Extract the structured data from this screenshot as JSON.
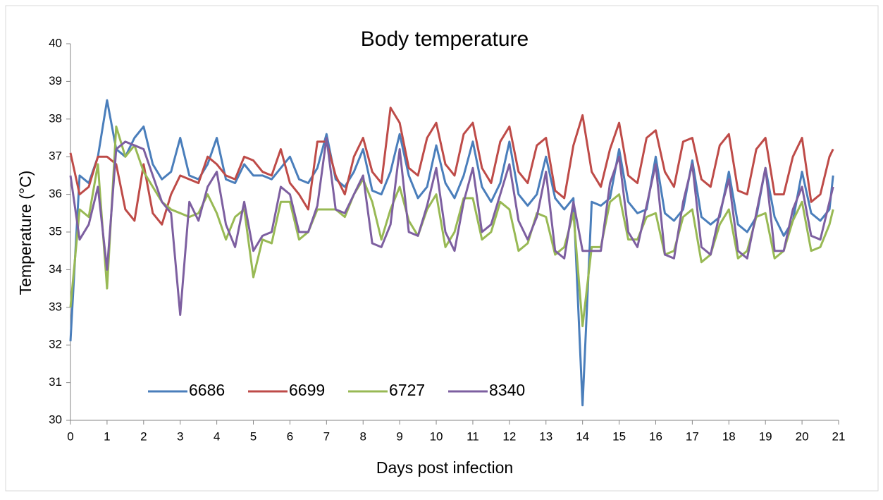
{
  "chart_data": {
    "type": "line",
    "title": "Body temperature",
    "x_label": "Days post infection",
    "y_label": "Temperature  (°C)",
    "x": [
      0,
      0.25,
      0.5,
      0.75,
      1,
      1.25,
      1.5,
      1.75,
      2,
      2.25,
      2.5,
      2.75,
      3,
      3.25,
      3.5,
      3.75,
      4,
      4.25,
      4.5,
      4.75,
      5,
      5.25,
      5.5,
      5.75,
      6,
      6.25,
      6.5,
      6.75,
      7,
      7.25,
      7.5,
      7.75,
      8,
      8.25,
      8.5,
      8.75,
      9,
      9.25,
      9.5,
      9.75,
      10,
      10.25,
      10.5,
      10.75,
      11,
      11.25,
      11.5,
      11.75,
      12,
      12.25,
      12.5,
      12.75,
      13,
      13.25,
      13.5,
      13.75,
      14,
      14.25,
      14.5,
      14.75,
      15,
      15.25,
      15.5,
      15.75,
      16,
      16.25,
      16.5,
      16.75,
      17,
      17.25,
      17.5,
      17.75,
      18,
      18.25,
      18.5,
      18.75,
      19,
      19.25,
      19.5,
      19.75,
      20,
      20.25,
      20.5,
      20.75,
      20.85
    ],
    "series": [
      {
        "name": "6686",
        "color": "#4a7ebb",
        "values": [
          32.1,
          36.5,
          36.3,
          37.0,
          38.5,
          37.2,
          37.0,
          37.5,
          37.8,
          36.8,
          36.4,
          36.6,
          37.5,
          36.5,
          36.4,
          36.8,
          37.5,
          36.4,
          36.3,
          36.8,
          36.5,
          36.5,
          36.4,
          36.7,
          37.0,
          36.4,
          36.3,
          36.7,
          37.6,
          36.4,
          36.2,
          36.6,
          37.2,
          36.1,
          36.0,
          36.6,
          37.6,
          36.5,
          35.9,
          36.2,
          37.3,
          36.3,
          35.9,
          36.5,
          37.4,
          36.2,
          35.8,
          36.3,
          37.4,
          36.0,
          35.7,
          36.0,
          37.0,
          35.9,
          35.6,
          35.9,
          30.4,
          35.8,
          35.7,
          35.9,
          37.2,
          35.8,
          35.5,
          35.6,
          37.0,
          35.5,
          35.3,
          35.6,
          36.9,
          35.4,
          35.2,
          35.4,
          36.6,
          35.2,
          35.0,
          35.4,
          36.7,
          35.4,
          34.9,
          35.3,
          36.6,
          35.5,
          35.3,
          35.6,
          36.5
        ]
      },
      {
        "name": "6699",
        "color": "#be4b48",
        "values": [
          37.1,
          36.0,
          36.2,
          37.0,
          37.0,
          36.8,
          35.6,
          35.3,
          36.8,
          35.5,
          35.2,
          36.0,
          36.5,
          36.4,
          36.3,
          37.0,
          36.8,
          36.5,
          36.4,
          37.0,
          36.9,
          36.6,
          36.5,
          37.2,
          36.3,
          36.0,
          35.6,
          37.4,
          37.4,
          36.5,
          36.0,
          37.0,
          37.5,
          36.6,
          36.3,
          38.3,
          37.9,
          36.7,
          36.5,
          37.5,
          37.9,
          36.8,
          36.5,
          37.6,
          37.9,
          36.7,
          36.3,
          37.4,
          37.8,
          36.6,
          36.3,
          37.3,
          37.5,
          36.1,
          35.9,
          37.3,
          38.1,
          36.6,
          36.2,
          37.2,
          37.9,
          36.5,
          36.3,
          37.5,
          37.7,
          36.6,
          36.2,
          37.4,
          37.5,
          36.4,
          36.2,
          37.3,
          37.6,
          36.1,
          36.0,
          37.2,
          37.5,
          36.0,
          36.0,
          37.0,
          37.5,
          35.8,
          36.0,
          37.0,
          37.2
        ]
      },
      {
        "name": "6727",
        "color": "#98b954",
        "values": [
          33.0,
          35.6,
          35.4,
          36.8,
          33.5,
          37.8,
          37.0,
          37.3,
          36.6,
          36.2,
          35.8,
          35.6,
          35.5,
          35.4,
          35.5,
          36.0,
          35.5,
          34.8,
          35.4,
          35.6,
          33.8,
          34.8,
          34.7,
          35.8,
          35.8,
          34.8,
          35.0,
          35.6,
          35.6,
          35.6,
          35.4,
          36.0,
          36.4,
          35.8,
          34.8,
          35.6,
          36.2,
          35.3,
          34.9,
          35.6,
          36.0,
          34.6,
          35.0,
          35.9,
          35.9,
          34.8,
          35.0,
          35.8,
          35.6,
          34.5,
          34.7,
          35.5,
          35.4,
          34.4,
          34.6,
          35.5,
          32.5,
          34.6,
          34.6,
          35.8,
          36.0,
          34.8,
          34.8,
          35.4,
          35.5,
          34.4,
          34.5,
          35.4,
          35.6,
          34.2,
          34.4,
          35.2,
          35.6,
          34.3,
          34.5,
          35.4,
          35.5,
          34.3,
          34.5,
          35.3,
          35.8,
          34.5,
          34.6,
          35.2,
          35.6
        ]
      },
      {
        "name": "8340",
        "color": "#7d5fa0",
        "values": [
          36.5,
          34.8,
          35.2,
          36.2,
          34.0,
          37.2,
          37.4,
          37.3,
          37.2,
          36.5,
          35.8,
          35.5,
          32.8,
          35.8,
          35.3,
          36.2,
          36.6,
          35.2,
          34.6,
          35.8,
          34.5,
          34.9,
          35.0,
          36.2,
          36.0,
          35.0,
          35.0,
          35.7,
          37.5,
          35.6,
          35.5,
          36.0,
          36.5,
          34.7,
          34.6,
          35.2,
          37.2,
          35.0,
          34.9,
          35.7,
          36.7,
          35.0,
          34.5,
          35.8,
          36.7,
          35.0,
          35.2,
          36.0,
          36.8,
          35.3,
          34.8,
          35.4,
          36.6,
          34.5,
          34.3,
          35.8,
          34.5,
          34.5,
          34.5,
          36.3,
          37.0,
          35.0,
          34.6,
          35.7,
          36.8,
          34.4,
          34.3,
          35.8,
          36.8,
          34.6,
          34.4,
          35.5,
          36.4,
          34.5,
          34.3,
          35.5,
          36.7,
          34.5,
          34.5,
          35.6,
          36.2,
          34.9,
          34.8,
          35.8,
          36.2
        ]
      }
    ],
    "xlim": [
      0,
      21
    ],
    "xticks": [
      0,
      1,
      2,
      3,
      4,
      5,
      6,
      7,
      8,
      9,
      10,
      11,
      12,
      13,
      14,
      15,
      16,
      17,
      18,
      19,
      20,
      21
    ],
    "ylim": [
      30,
      40
    ],
    "yticks": [
      30,
      31,
      32,
      33,
      34,
      35,
      36,
      37,
      38,
      39,
      40
    ],
    "legend": "lower-left"
  }
}
